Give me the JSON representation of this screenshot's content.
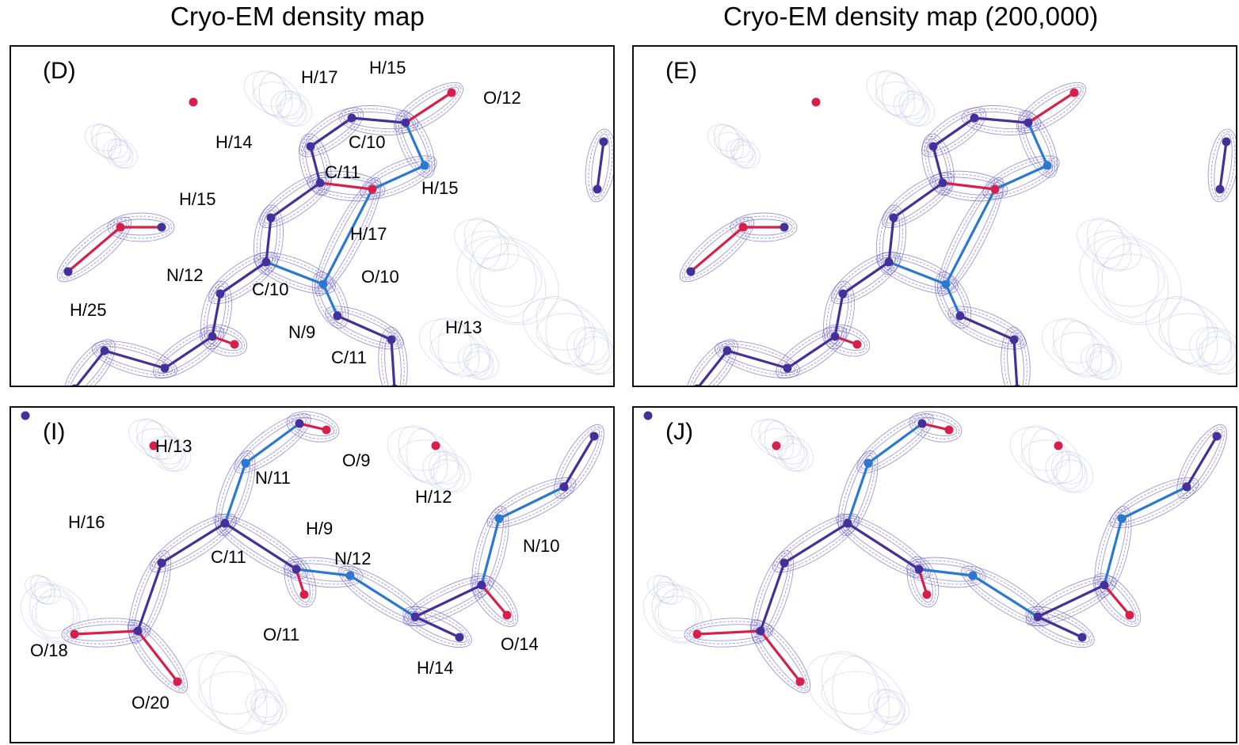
{
  "column_titles": {
    "left": "Cryo-EM density map",
    "right": "Cryo-EM density map (200,000)"
  },
  "colors": {
    "mesh": "#5a50c8",
    "mesh_faint": "#b4b4e6",
    "bond": "#43309a",
    "nitrogen": "#2a78d0",
    "oxygen": "#d81e4a",
    "border": "#111111"
  },
  "panels": [
    {
      "letter": "(D)",
      "labels": [
        "H/17",
        "H/15",
        "O/12",
        "H/14",
        "C/10",
        "C/11",
        "H/15",
        "H/15",
        "H/17",
        "N/12",
        "C/10",
        "O/10",
        "H/25",
        "N/9",
        "H/13",
        "C/11"
      ]
    },
    {
      "letter": "(E)",
      "labels": []
    },
    {
      "letter": "(I)",
      "labels": [
        "H/13",
        "N/11",
        "O/9",
        "H/12",
        "H/16",
        "H/9",
        "N/10",
        "C/11",
        "N/12",
        "O/11",
        "O/18",
        "O/14",
        "H/14",
        "O/20"
      ]
    },
    {
      "letter": "(J)",
      "labels": []
    }
  ]
}
